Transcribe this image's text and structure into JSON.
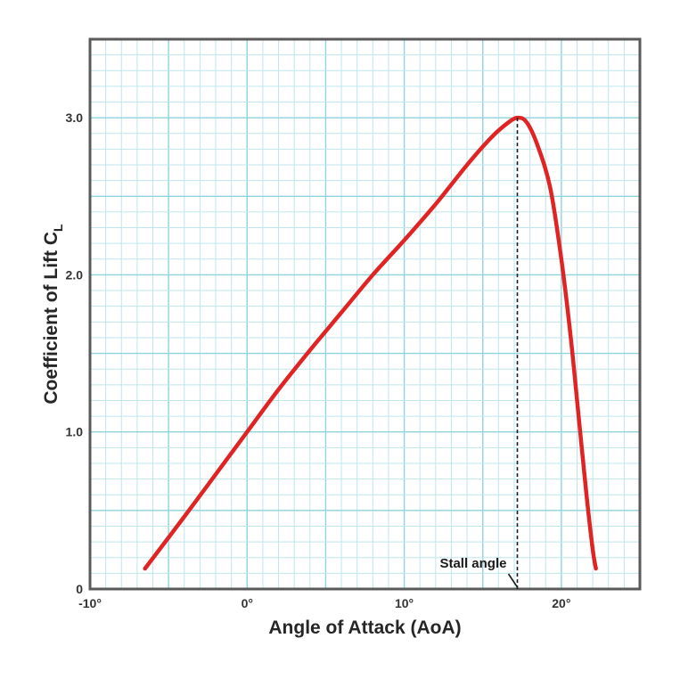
{
  "chart_data": {
    "type": "line",
    "xlabel": "Angle of Attack (AoA)",
    "ylabel": "Coefficient of Lift C",
    "ylabel_subscript": "L",
    "xlim": [
      -10,
      25
    ],
    "ylim": [
      0,
      3.5
    ],
    "x_ticks": [
      {
        "value": -10,
        "label": "-10°"
      },
      {
        "value": 0,
        "label": "0°"
      },
      {
        "value": 10,
        "label": "10°"
      },
      {
        "value": 20,
        "label": "20°"
      }
    ],
    "y_ticks": [
      {
        "value": 0,
        "label": "0"
      },
      {
        "value": 1,
        "label": "1.0"
      },
      {
        "value": 2,
        "label": "2.0"
      },
      {
        "value": 3,
        "label": "3.0"
      }
    ],
    "grid": true,
    "series": [
      {
        "color": "#e02424",
        "x": [
          -6.5,
          -4,
          -2,
          0,
          2,
          4,
          6,
          8,
          10,
          12,
          14,
          15.5,
          16.5,
          17.2,
          17.8,
          18.5,
          19.3,
          20,
          20.6,
          21.1,
          21.6,
          22,
          22.2
        ],
        "y": [
          0.13,
          0.46,
          0.73,
          1.0,
          1.27,
          1.52,
          1.76,
          2.0,
          2.22,
          2.45,
          2.7,
          2.87,
          2.96,
          3.0,
          2.97,
          2.82,
          2.55,
          2.1,
          1.6,
          1.1,
          0.6,
          0.25,
          0.13
        ]
      }
    ],
    "annotations": [
      {
        "text": "Stall angle",
        "x": 17.2,
        "y": 3.0
      }
    ],
    "colors": {
      "grid_major": "#8fd3dc",
      "grid_minor": "#bfe6ec",
      "frame": "#5a5a5a",
      "dashed_line": "#1a1a1a"
    }
  }
}
